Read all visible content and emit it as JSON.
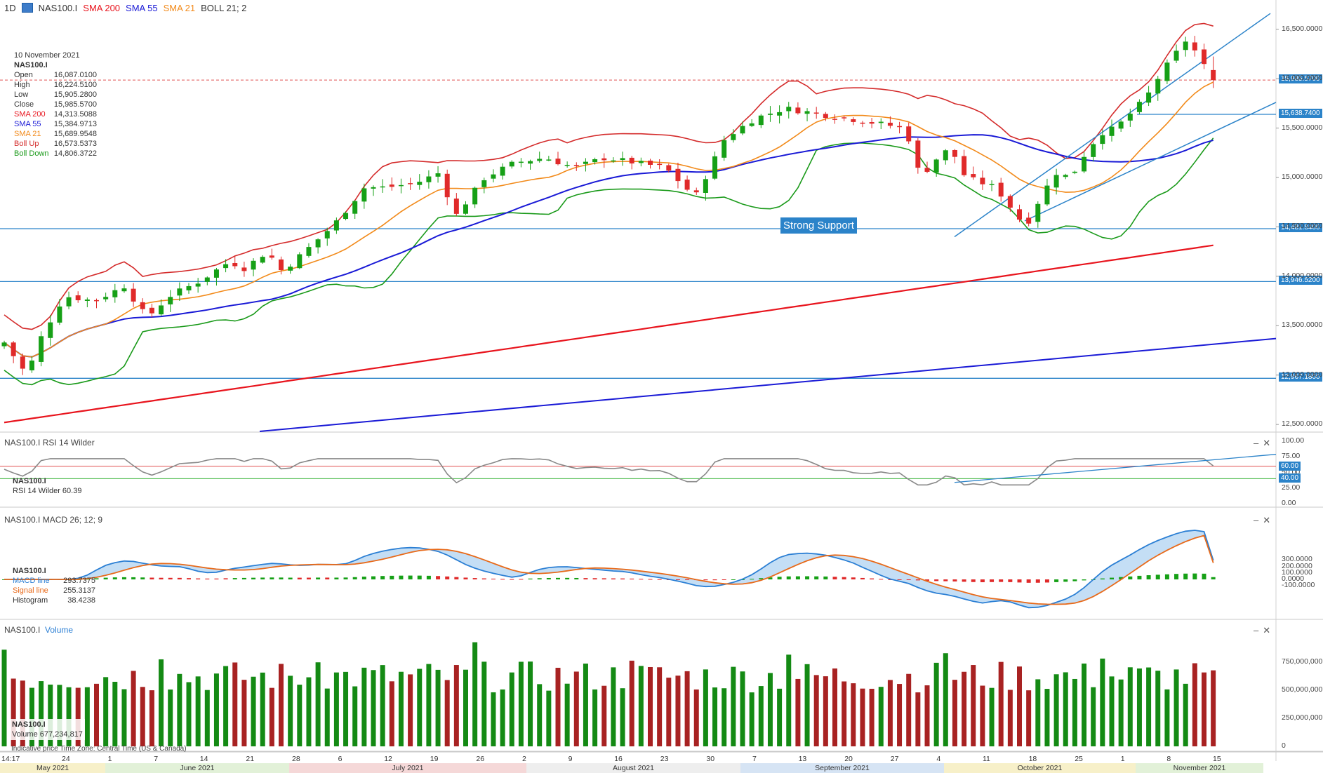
{
  "header": {
    "timeframe": "1D",
    "symbol": "NAS100.I",
    "sma200": "SMA 200",
    "sma55": "SMA 55",
    "sma21": "SMA 21",
    "boll": "BOLL 21; 2",
    "colors": {
      "sma200": "#e8141d",
      "sma55": "#1a1ad6",
      "sma21": "#f28a1a",
      "boll_up": "#d42b2b",
      "boll_down": "#1a9a1a"
    }
  },
  "info": {
    "date": "10 November 2021",
    "symbol": "NAS100.I",
    "rows": [
      {
        "label": "Open",
        "value": "16,087.0100",
        "color": "#333333"
      },
      {
        "label": "High",
        "value": "16,224.5100",
        "color": "#333333"
      },
      {
        "label": "Low",
        "value": "15,905.2800",
        "color": "#333333"
      },
      {
        "label": "Close",
        "value": "15,985.5700",
        "color": "#333333"
      },
      {
        "label": "SMA 200",
        "value": "14,313.5088",
        "color": "#e8141d"
      },
      {
        "label": "SMA 55",
        "value": "15,384.9713",
        "color": "#1a1ad6"
      },
      {
        "label": "SMA 21",
        "value": "15,689.9548",
        "color": "#f28a1a"
      },
      {
        "label": "Boll Up",
        "value": "16,573.5373",
        "color": "#d42b2b"
      },
      {
        "label": "Boll Down",
        "value": "14,806.3722",
        "color": "#1a9a1a"
      }
    ]
  },
  "annotation": "Strong Support",
  "price_tags": [
    "15,985.5700",
    "15,638.7400",
    "14,481.8400",
    "13,946.5200",
    "12,967.1800"
  ],
  "rsi_pane": {
    "title": "NAS100.I  RSI 14 Wilder",
    "legend_symbol": "NAS100.I",
    "legend_value": "RSI 14 Wilder  60.39",
    "tags": [
      "60.00",
      "40.00"
    ]
  },
  "macd_pane": {
    "title": "NAS100.I  MACD 26; 12; 9",
    "legend_symbol": "NAS100.I",
    "legend_rows": [
      {
        "label": "MACD line",
        "value": "293.7375",
        "color": "#2b7fd4"
      },
      {
        "label": "Signal line",
        "value": "255.3137",
        "color": "#e86a1a"
      },
      {
        "label": "Histogram",
        "value": "38.4238",
        "color": "#333333"
      }
    ]
  },
  "volume_pane": {
    "title_symbol": "NAS100.I",
    "title_name": "Volume",
    "legend_symbol": "NAS100.I",
    "legend_value": "Volume  677,234,817"
  },
  "footer": {
    "note": "Indicative price    Time Zone: Central Time (US & Canada)",
    "start_time": "14:17"
  },
  "chart_data": [
    {
      "type": "candlestick",
      "series": [
        {
          "name": "SMA 200",
          "values": [
            12520,
            14313.5
          ]
        },
        {
          "name": "SMA 55",
          "values": [
            13360,
            15385
          ]
        },
        {
          "name": "SMA 21",
          "values": [
            13730,
            15690
          ]
        },
        {
          "name": "Boll Up",
          "values": [
            14290,
            16574
          ]
        },
        {
          "name": "Boll Down",
          "values": [
            13140,
            14806
          ]
        }
      ],
      "x_month_labels": [
        "May 2021",
        "June 2021",
        "July 2021",
        "August 2021",
        "September 2021",
        "October 2021",
        "November 2021"
      ],
      "x_day_labels": [
        "24",
        "1",
        "7",
        "14",
        "21",
        "28",
        "6",
        "12",
        "19",
        "26",
        "2",
        "9",
        "16",
        "23",
        "30",
        "7",
        "13",
        "20",
        "27",
        "4",
        "11",
        "18",
        "25",
        "1",
        "8",
        "15"
      ],
      "y_ticks": [
        "16,500.0000",
        "16,000.0000",
        "15,500.0000",
        "15,000.0000",
        "14,500.0000",
        "14,000.0000",
        "13,500.0000",
        "13,000.0000",
        "12,500.0000"
      ],
      "ylim": [
        12430,
        16640
      ],
      "horizontal_levels": [
        15638.74,
        14481.84,
        13946.52,
        12967.18
      ],
      "last_close": 15985.57,
      "annotations": [
        "Strong Support"
      ]
    },
    {
      "type": "line",
      "name": "RSI 14 Wilder",
      "y_ticks": [
        "100.00",
        "75.00",
        "50.00",
        "25.00",
        "0.00"
      ],
      "ylim": [
        0,
        100
      ],
      "levels": [
        60,
        40
      ],
      "last": 60.39
    },
    {
      "type": "line",
      "name": "MACD 26; 12; 9",
      "y_ticks": [
        "300.0000",
        "200.0000",
        "100.0000",
        "0.0000",
        "-100.0000"
      ],
      "ylim": [
        -180,
        330
      ],
      "last": {
        "macd": 293.7375,
        "signal": 255.3137,
        "histogram": 38.4238
      }
    },
    {
      "type": "bar",
      "name": "Volume",
      "y_ticks": [
        "750,000,000",
        "500,000,000",
        "250,000,000",
        "0"
      ],
      "ylim": [
        0,
        1000000000
      ],
      "last": 677234817
    }
  ]
}
